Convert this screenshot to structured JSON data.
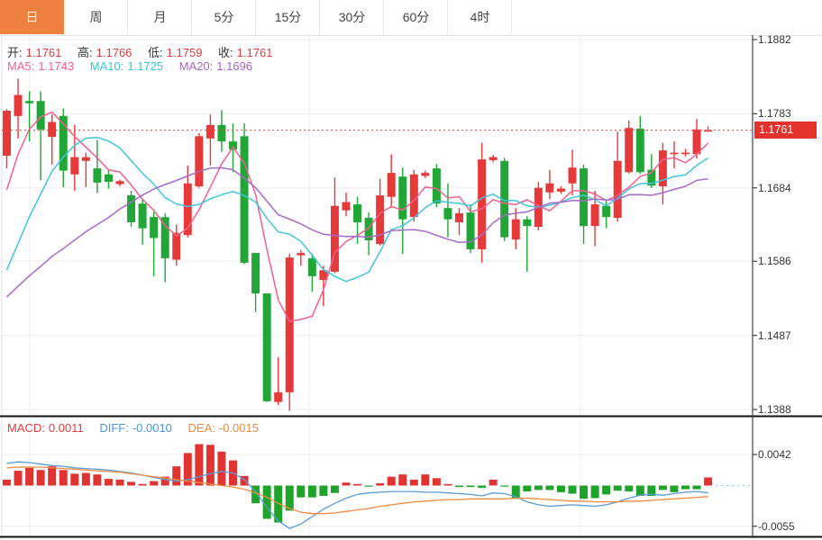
{
  "tabs": {
    "items": [
      {
        "label": "日",
        "active": true
      },
      {
        "label": "周",
        "active": false
      },
      {
        "label": "月",
        "active": false
      },
      {
        "label": "5分",
        "active": false
      },
      {
        "label": "15分",
        "active": false
      },
      {
        "label": "30分",
        "active": false
      },
      {
        "label": "60分",
        "active": false
      },
      {
        "label": "4时",
        "active": false
      }
    ]
  },
  "quote": {
    "open_label": "开:",
    "open": "1.1761",
    "high_label": "高:",
    "high": "1.1766",
    "low_label": "低:",
    "low": "1.1759",
    "close_label": "收:",
    "close": "1.1761",
    "label_color": "#333333",
    "value_color": "#E23B3B"
  },
  "ma_info": {
    "ma5_label": "MA5:",
    "ma5": "1.1743",
    "ma5_color": "#F06090",
    "ma10_label": "MA10:",
    "ma10": "1.1725",
    "ma10_color": "#38C4D8",
    "ma20_label": "MA20:",
    "ma20": "1.1696",
    "ma20_color": "#A368C8"
  },
  "macd_info": {
    "macd_label": "MACD:",
    "macd": "0.0011",
    "macd_color": "#E23B3B",
    "diff_label": "DIFF:",
    "diff": "-0.0010",
    "diff_color": "#4F94D8",
    "dea_label": "DEA:",
    "dea": "-0.0015",
    "dea_color": "#EF8B40"
  },
  "price_axis": {
    "ticks": [
      "1.1882",
      "1.1783",
      "1.1684",
      "1.1586",
      "1.1487",
      "1.1388"
    ],
    "last_price": "1.1761"
  },
  "macd_axis": {
    "ticks": [
      "0.0042",
      "-0.0055"
    ]
  },
  "colors": {
    "up": "#E63A3A",
    "down": "#21A637",
    "tab_active": "#EE8040",
    "ma5": "#F06090",
    "ma10": "#42C5DC",
    "ma20": "#A66BC8",
    "diff": "#5B9BD5",
    "dea": "#EF8B40",
    "hist_up": "#E23333",
    "hist_down": "#1FA32B",
    "last_price_line": "#E0483E",
    "badge_bg": "#E5312B",
    "grid": "#ededed",
    "vgrid": "#e9eef2",
    "axis_line": "#444444",
    "panel_divider": "#111111",
    "zero_dash": "#9FD9EA"
  },
  "chart_data": {
    "type": "candlestick+macd",
    "title": "",
    "price_range": [
      1.1388,
      1.1882
    ],
    "macd_range": [
      -0.0055,
      0.0042
    ],
    "candles": [
      [
        1.1727,
        1.1789,
        1.171,
        1.1787
      ],
      [
        1.178,
        1.183,
        1.175,
        1.1808
      ],
      [
        1.18,
        1.1813,
        1.1746,
        1.1797
      ],
      [
        1.18,
        1.1813,
        1.1694,
        1.1762
      ],
      [
        1.1752,
        1.1782,
        1.1715,
        1.1772
      ],
      [
        1.178,
        1.179,
        1.1685,
        1.1707
      ],
      [
        1.1702,
        1.1768,
        1.168,
        1.1725
      ],
      [
        1.172,
        1.1731,
        1.1685,
        1.1725
      ],
      [
        1.171,
        1.1748,
        1.1677,
        1.1691
      ],
      [
        1.1702,
        1.1708,
        1.1683,
        1.1692
      ],
      [
        1.1689,
        1.1695,
        1.1686,
        1.1693
      ],
      [
        1.1674,
        1.168,
        1.1632,
        1.1638
      ],
      [
        1.1663,
        1.167,
        1.1608,
        1.163
      ],
      [
        1.1645,
        1.1652,
        1.1566,
        1.1617
      ],
      [
        1.1645,
        1.165,
        1.1558,
        1.159
      ],
      [
        1.1588,
        1.1635,
        1.158,
        1.1624
      ],
      [
        1.1621,
        1.1714,
        1.1618,
        1.169
      ],
      [
        1.1686,
        1.1757,
        1.1684,
        1.1753
      ],
      [
        1.175,
        1.1782,
        1.1714,
        1.1768
      ],
      [
        1.1768,
        1.1788,
        1.1732,
        1.1746
      ],
      [
        1.1746,
        1.177,
        1.1705,
        1.1735
      ],
      [
        1.1753,
        1.177,
        1.1582,
        1.1584
      ],
      [
        1.1597,
        1.1597,
        1.1518,
        1.1543
      ],
      [
        1.1543,
        1.1543,
        1.1398,
        1.1399
      ],
      [
        1.1398,
        1.1458,
        1.1394,
        1.1411
      ],
      [
        1.1411,
        1.1596,
        1.1386,
        1.1591
      ],
      [
        1.1594,
        1.1601,
        1.158,
        1.1597
      ],
      [
        1.159,
        1.1596,
        1.1545,
        1.1566
      ],
      [
        1.1561,
        1.158,
        1.1526,
        1.1574
      ],
      [
        1.1572,
        1.1698,
        1.157,
        1.166
      ],
      [
        1.1654,
        1.1678,
        1.1646,
        1.1665
      ],
      [
        1.1662,
        1.1672,
        1.1609,
        1.1638
      ],
      [
        1.1644,
        1.1651,
        1.1594,
        1.1614
      ],
      [
        1.1609,
        1.1696,
        1.1607,
        1.1674
      ],
      [
        1.1672,
        1.1729,
        1.1657,
        1.1704
      ],
      [
        1.1699,
        1.1711,
        1.1596,
        1.1642
      ],
      [
        1.1645,
        1.1708,
        1.1639,
        1.1702
      ],
      [
        1.17,
        1.1707,
        1.1697,
        1.1704
      ],
      [
        1.171,
        1.1716,
        1.1658,
        1.1663
      ],
      [
        1.1657,
        1.169,
        1.1618,
        1.1642
      ],
      [
        1.1638,
        1.1657,
        1.1621,
        1.165
      ],
      [
        1.1651,
        1.1662,
        1.1597,
        1.1602
      ],
      [
        1.1602,
        1.1744,
        1.1584,
        1.1722
      ],
      [
        1.1721,
        1.1728,
        1.1718,
        1.1725
      ],
      [
        1.172,
        1.1724,
        1.1613,
        1.1618
      ],
      [
        1.1615,
        1.1657,
        1.1602,
        1.1642
      ],
      [
        1.1642,
        1.1646,
        1.1572,
        1.1633
      ],
      [
        1.1632,
        1.1692,
        1.1627,
        1.1684
      ],
      [
        1.1678,
        1.1708,
        1.1669,
        1.169
      ],
      [
        1.1679,
        1.1686,
        1.1676,
        1.1683
      ],
      [
        1.169,
        1.1735,
        1.1674,
        1.1711
      ],
      [
        1.171,
        1.1715,
        1.1609,
        1.1633
      ],
      [
        1.1633,
        1.168,
        1.1606,
        1.1662
      ],
      [
        1.166,
        1.1668,
        1.163,
        1.1645
      ],
      [
        1.1644,
        1.1759,
        1.1639,
        1.172
      ],
      [
        1.1705,
        1.1774,
        1.1703,
        1.1764
      ],
      [
        1.1763,
        1.178,
        1.1703,
        1.1705
      ],
      [
        1.1708,
        1.1729,
        1.1684,
        1.1687
      ],
      [
        1.1686,
        1.1744,
        1.1662,
        1.1734
      ],
      [
        1.1729,
        1.1746,
        1.171,
        1.1731
      ],
      [
        1.1729,
        1.1736,
        1.1726,
        1.1731
      ],
      [
        1.1729,
        1.1776,
        1.1723,
        1.1762
      ],
      [
        1.1761,
        1.1766,
        1.1759,
        1.1761
      ]
    ],
    "ma_periods": [
      5,
      10,
      20
    ],
    "ma_warmup_closes": [
      1.152,
      1.1515,
      1.151,
      1.1505,
      1.15,
      1.1498,
      1.15,
      1.1502,
      1.15,
      1.147,
      1.145,
      1.1445,
      1.1455,
      1.147,
      1.1515,
      1.157,
      1.163,
      1.168,
      1.174
    ],
    "macd": {
      "unit": 0.0001,
      "hist": [
        8,
        20,
        24,
        21,
        26,
        21,
        16,
        17,
        15,
        9,
        8,
        5,
        2,
        6,
        12,
        26,
        44,
        56,
        55,
        46,
        34,
        13,
        -24,
        -45,
        -50,
        -34,
        -16,
        -16,
        -14,
        -10,
        4,
        2,
        -1,
        3,
        12,
        15,
        8,
        15,
        10,
        2,
        -2,
        -2,
        -3,
        8,
        -1,
        -18,
        -8,
        -6,
        -6,
        -9,
        -11,
        -18,
        -17,
        -12,
        -7,
        -8,
        -14,
        -14,
        -6,
        -9,
        -5,
        -5,
        11
      ],
      "diff": [
        30,
        32,
        31,
        29,
        27,
        26,
        24,
        23,
        22,
        21,
        19,
        17,
        14,
        11,
        8,
        6,
        8,
        12,
        16,
        19,
        17,
        8,
        -8,
        -30,
        -48,
        -58,
        -52,
        -42,
        -32,
        -24,
        -17,
        -12,
        -10,
        -9,
        -8,
        -8,
        -8,
        -9,
        -9,
        -10,
        -11,
        -12,
        -14,
        -10,
        -11,
        -15,
        -22,
        -26,
        -28,
        -27,
        -26,
        -27,
        -28,
        -26,
        -22,
        -17,
        -13,
        -12,
        -13,
        -11,
        -9,
        -8,
        -10
      ],
      "dea": [
        24,
        25,
        25,
        25,
        24,
        23,
        22,
        21,
        20,
        19,
        18,
        16,
        14,
        12,
        10,
        8,
        6,
        4,
        2,
        0,
        -2,
        -5,
        -10,
        -16,
        -24,
        -31,
        -36,
        -38,
        -38,
        -37,
        -35,
        -33,
        -31,
        -28,
        -26,
        -24,
        -22,
        -21,
        -20,
        -19,
        -19,
        -18,
        -18,
        -18,
        -18,
        -17,
        -17,
        -18,
        -19,
        -20,
        -21,
        -21,
        -22,
        -22,
        -22,
        -21,
        -21,
        -20,
        -19,
        -18,
        -17,
        -16,
        -15
      ]
    },
    "last_price": 1.1761
  }
}
